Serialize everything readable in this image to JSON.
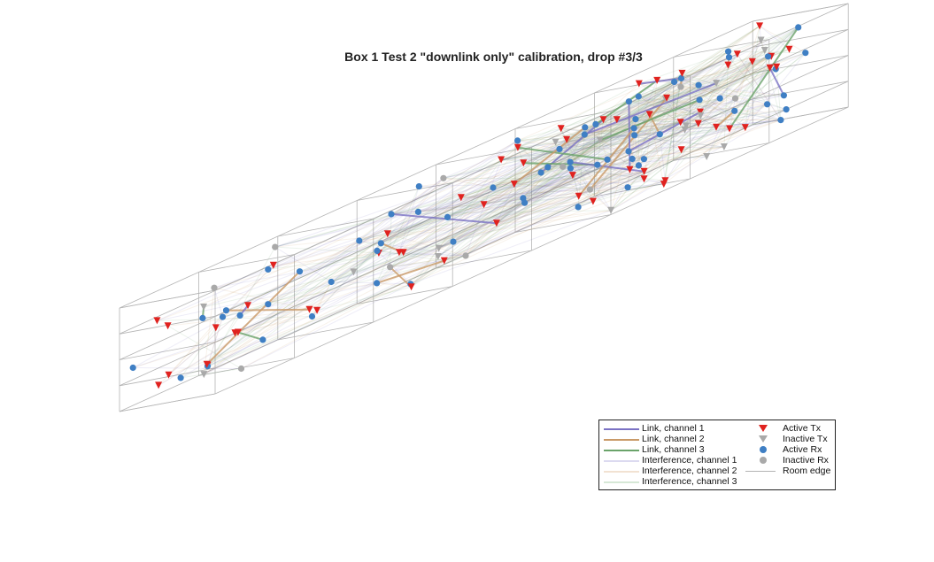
{
  "title": "Box 1 Test 2 \"downlink only\" calibration, drop #3/3",
  "colors": {
    "channel1": "#7b72c4",
    "channel2": "#c99a68",
    "channel3": "#6aa36a",
    "active_tx": "#e0221f",
    "inactive_tx": "#a9a9a9",
    "active_rx": "#3f7fc4",
    "inactive_rx": "#a9a9a9",
    "room_edge": "#b4b4b4"
  },
  "legend": {
    "link_ch1": "Link, channel 1",
    "link_ch2": "Link, channel 2",
    "link_ch3": "Link, channel 3",
    "interf_ch1": "Interference, channel 1",
    "interf_ch2": "Interference, channel 2",
    "interf_ch3": "Interference, channel 3",
    "active_tx": "Active Tx",
    "inactive_tx": "Inactive Tx",
    "active_rx": "Active Rx",
    "inactive_rx": "Inactive Rx",
    "room_edge": "Room edge"
  }
}
